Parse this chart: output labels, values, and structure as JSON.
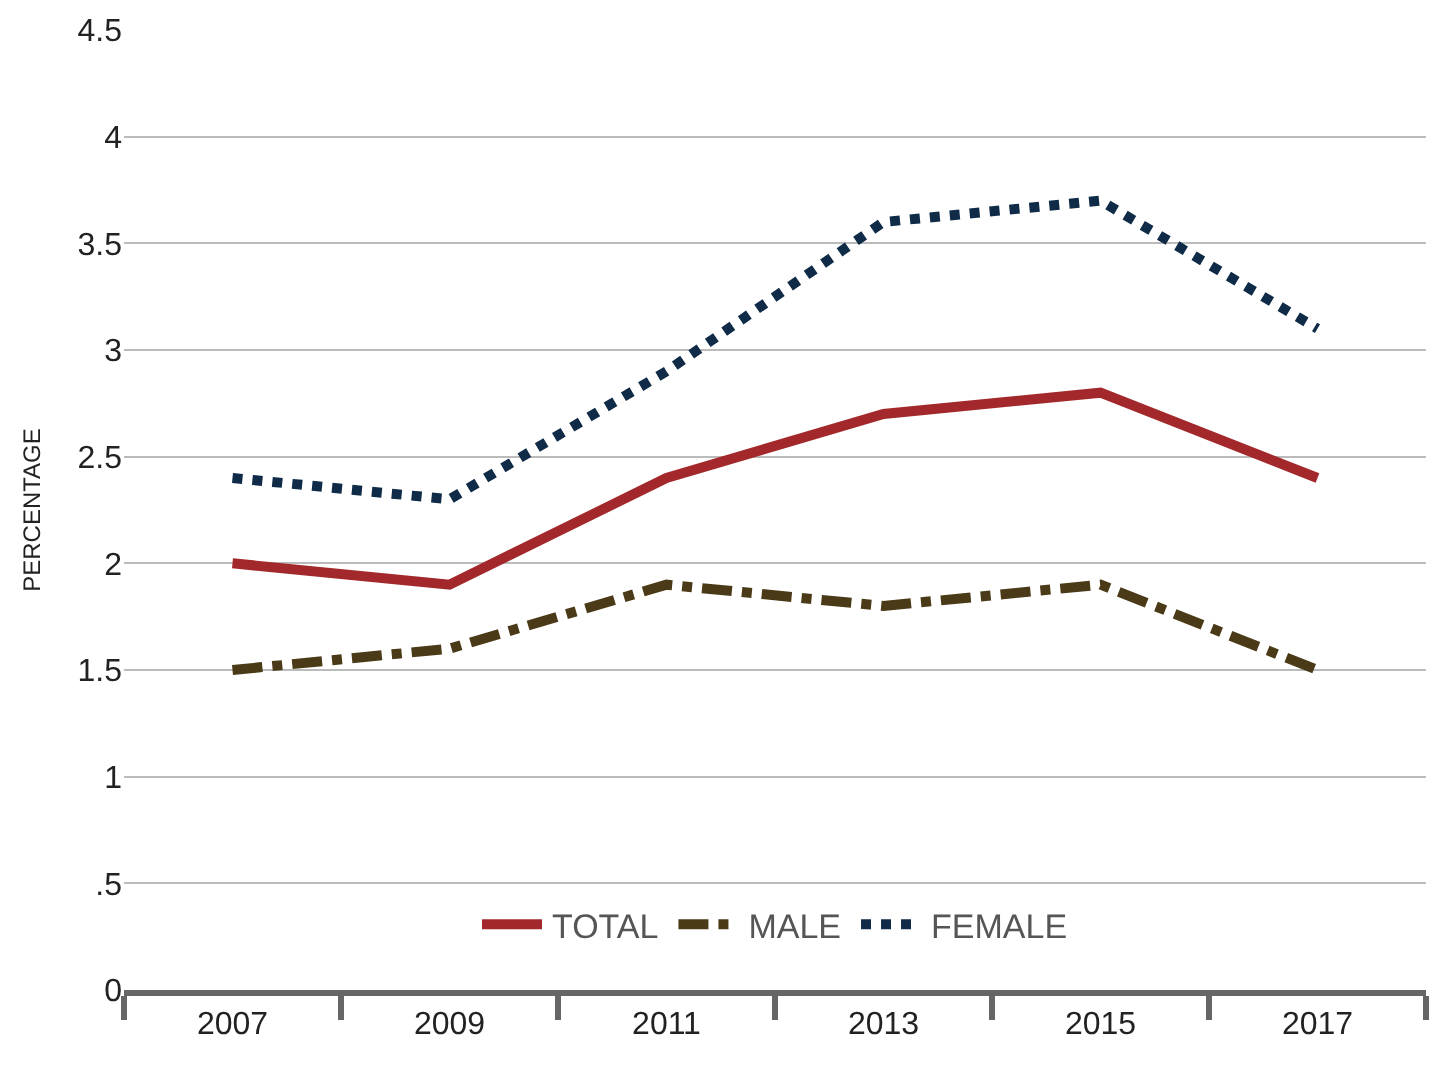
{
  "chart_data": {
    "type": "line",
    "ylabel": "PERCENTAGE",
    "categories": [
      "2007",
      "2009",
      "2011",
      "2013",
      "2015",
      "2017"
    ],
    "series": [
      {
        "name": "TOTAL",
        "color": "#a3282b",
        "line_style": "solid",
        "values": [
          2.0,
          1.9,
          2.4,
          2.7,
          2.8,
          2.4
        ]
      },
      {
        "name": "MALE",
        "color": "#4b3a17",
        "line_style": "dashed",
        "values": [
          1.5,
          1.6,
          1.9,
          1.8,
          1.9,
          1.5
        ]
      },
      {
        "name": "FEMALE",
        "color": "#0f2b47",
        "line_style": "dotted",
        "values": [
          2.4,
          2.3,
          2.9,
          3.6,
          3.7,
          3.1
        ]
      }
    ],
    "ylim": [
      0,
      4.5
    ],
    "yticks": [
      0,
      {
        "value": 0.5,
        "label": ".5"
      },
      1,
      1.5,
      2,
      2.5,
      3,
      3.5,
      4,
      4.5
    ],
    "grid": "y",
    "legend": "bottom",
    "marker": "none"
  }
}
